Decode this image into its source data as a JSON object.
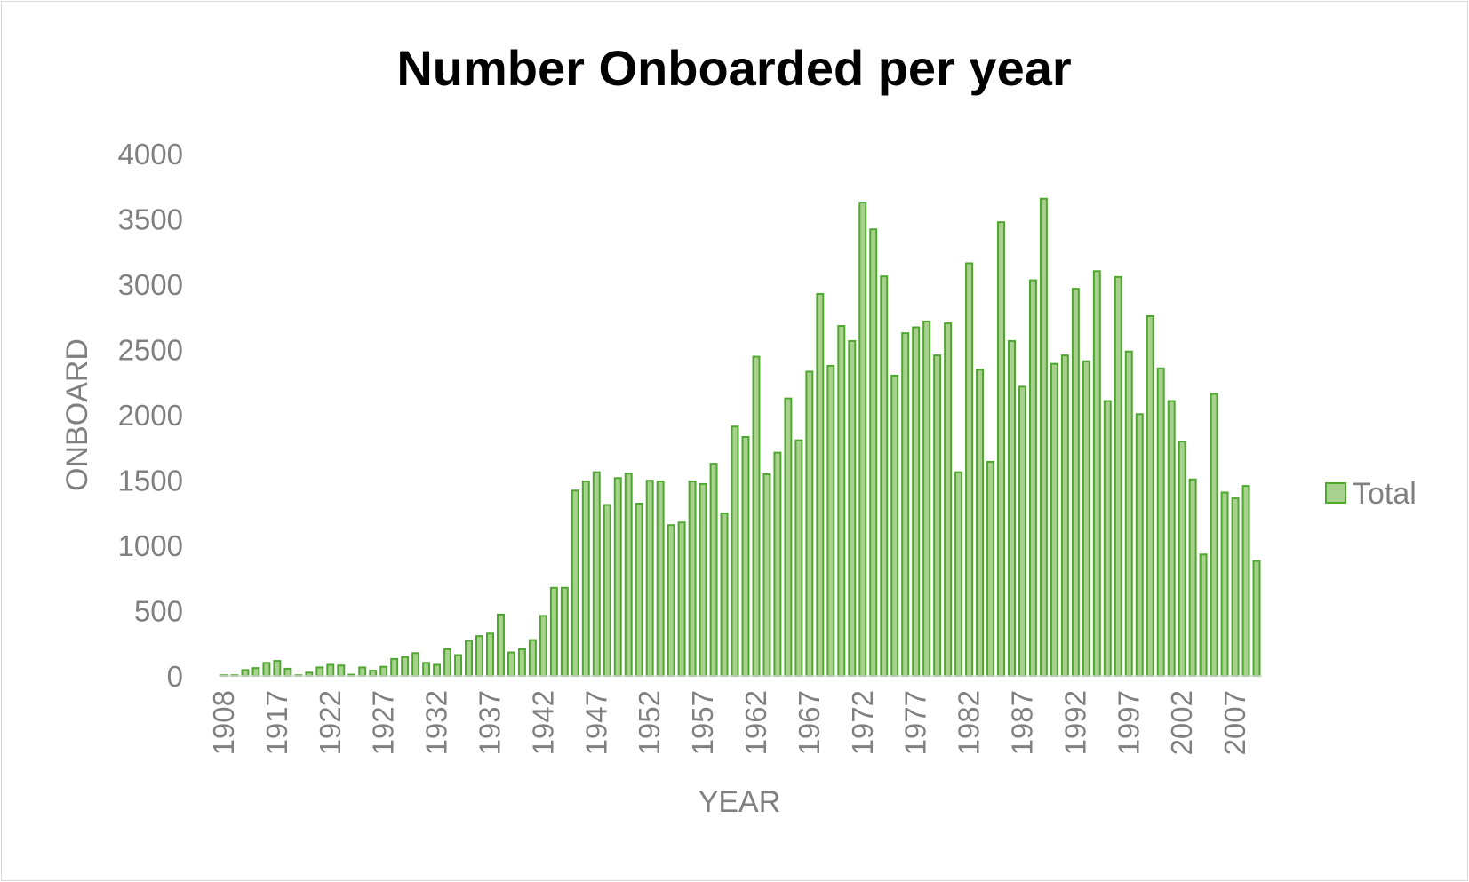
{
  "chart_data": {
    "type": "bar",
    "title": "Number Onboarded per year",
    "xlabel": "YEAR",
    "ylabel": "ONBOARD",
    "ylim": [
      0,
      4000
    ],
    "yticks": [
      0,
      500,
      1000,
      1500,
      2000,
      2500,
      3000,
      3500,
      4000
    ],
    "xtick_labels": [
      "1908",
      "1917",
      "1922",
      "1927",
      "1932",
      "1937",
      "1942",
      "1947",
      "1952",
      "1957",
      "1962",
      "1967",
      "1972",
      "1977",
      "1982",
      "1987",
      "1992",
      "1997",
      "2002",
      "2007"
    ],
    "xtick_label_indices": [
      0,
      5,
      10,
      15,
      20,
      25,
      30,
      35,
      40,
      45,
      50,
      55,
      60,
      65,
      70,
      75,
      80,
      85,
      90,
      95
    ],
    "legend": {
      "position": "right",
      "entries": [
        "Total"
      ]
    },
    "grid": false,
    "colors": {
      "bar_fill": "#a9d18e",
      "bar_edge": "#4ea72e",
      "tick_text": "#808080"
    },
    "series": [
      {
        "name": "Total",
        "values": [
          5,
          5,
          45,
          60,
          100,
          115,
          55,
          5,
          25,
          65,
          85,
          80,
          10,
          65,
          40,
          70,
          130,
          145,
          175,
          100,
          85,
          205,
          160,
          270,
          305,
          325,
          470,
          180,
          205,
          275,
          460,
          675,
          675,
          1420,
          1490,
          1560,
          1310,
          1515,
          1550,
          1320,
          1495,
          1490,
          1155,
          1175,
          1490,
          1470,
          1625,
          1245,
          1910,
          1830,
          2445,
          1545,
          1710,
          2125,
          1805,
          2330,
          2925,
          2375,
          2680,
          2565,
          3625,
          3420,
          3060,
          2300,
          2625,
          2670,
          2715,
          2455,
          2700,
          1560,
          3160,
          2345,
          1640,
          3475,
          2565,
          2215,
          3030,
          3655,
          2390,
          2455,
          2965,
          2410,
          3100,
          2105,
          3055,
          2485,
          2005,
          2755,
          2355,
          2105,
          1795,
          1505,
          930,
          2160,
          1405,
          1360,
          1455,
          880
        ]
      }
    ]
  }
}
